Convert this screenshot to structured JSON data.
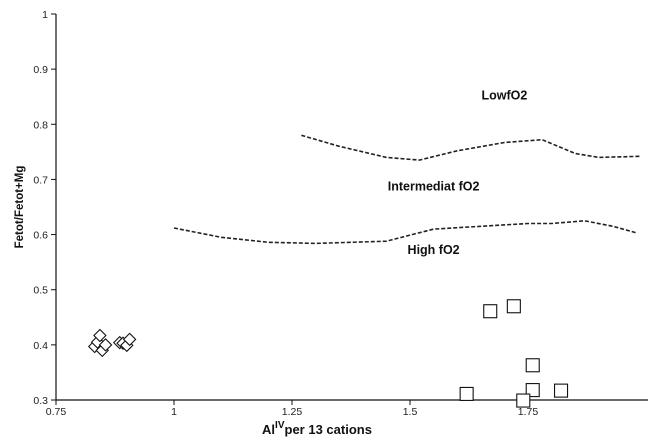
{
  "chart_data": {
    "type": "scatter",
    "title": "",
    "xlabel": {
      "main": "Al",
      "superscript": "IV",
      "rest": "per 13 cations"
    },
    "ylabel": "Fetot/Fetot+Mg",
    "xlim": [
      0.75,
      2.0
    ],
    "ylim": [
      0.3,
      1.0
    ],
    "x_ticks": [
      0.75,
      1,
      1.25,
      1.5,
      1.75
    ],
    "x_tick_labels": [
      "0.75",
      "1",
      "1.25",
      "1.5",
      "1.75"
    ],
    "y_ticks": [
      0.3,
      0.4,
      0.5,
      0.6,
      0.7,
      0.8,
      0.9,
      1.0
    ],
    "y_tick_labels": [
      "0.3",
      "0.4",
      "0.5",
      "0.6",
      "0.7",
      "0.8",
      "0.9",
      "1"
    ],
    "grid": false,
    "regions": [
      {
        "label": "LowfO2",
        "x": 1.7,
        "y": 0.845
      },
      {
        "label": "Intermediat fO2",
        "x": 1.55,
        "y": 0.68
      },
      {
        "label": "High fO2",
        "x": 1.55,
        "y": 0.565
      }
    ],
    "boundary_lines": [
      {
        "between": [
          "LowfO2",
          "Intermediat fO2"
        ],
        "points": [
          [
            1.27,
            0.78
          ],
          [
            1.35,
            0.76
          ],
          [
            1.45,
            0.74
          ],
          [
            1.52,
            0.735
          ],
          [
            1.6,
            0.752
          ],
          [
            1.7,
            0.767
          ],
          [
            1.78,
            0.772
          ],
          [
            1.85,
            0.747
          ],
          [
            1.9,
            0.74
          ],
          [
            1.99,
            0.742
          ]
        ]
      },
      {
        "between": [
          "Intermediat fO2",
          "High fO2"
        ],
        "points": [
          [
            1.0,
            0.612
          ],
          [
            1.1,
            0.595
          ],
          [
            1.2,
            0.586
          ],
          [
            1.3,
            0.584
          ],
          [
            1.45,
            0.588
          ],
          [
            1.55,
            0.61
          ],
          [
            1.65,
            0.615
          ],
          [
            1.75,
            0.62
          ],
          [
            1.8,
            0.62
          ],
          [
            1.87,
            0.625
          ],
          [
            1.93,
            0.615
          ],
          [
            1.98,
            0.603
          ]
        ]
      }
    ],
    "series": [
      {
        "marker": "diamond",
        "points": [
          [
            0.832,
            0.397
          ],
          [
            0.838,
            0.405
          ],
          [
            0.843,
            0.417
          ],
          [
            0.848,
            0.39
          ],
          [
            0.855,
            0.4
          ],
          [
            0.885,
            0.404
          ],
          [
            0.892,
            0.403
          ],
          [
            0.9,
            0.399
          ],
          [
            0.906,
            0.41
          ]
        ]
      },
      {
        "marker": "square",
        "points": [
          [
            1.62,
            0.311
          ],
          [
            1.67,
            0.461
          ],
          [
            1.72,
            0.47
          ],
          [
            1.76,
            0.363
          ],
          [
            1.76,
            0.318
          ],
          [
            1.82,
            0.317
          ],
          [
            1.74,
            0.299
          ]
        ]
      }
    ]
  }
}
